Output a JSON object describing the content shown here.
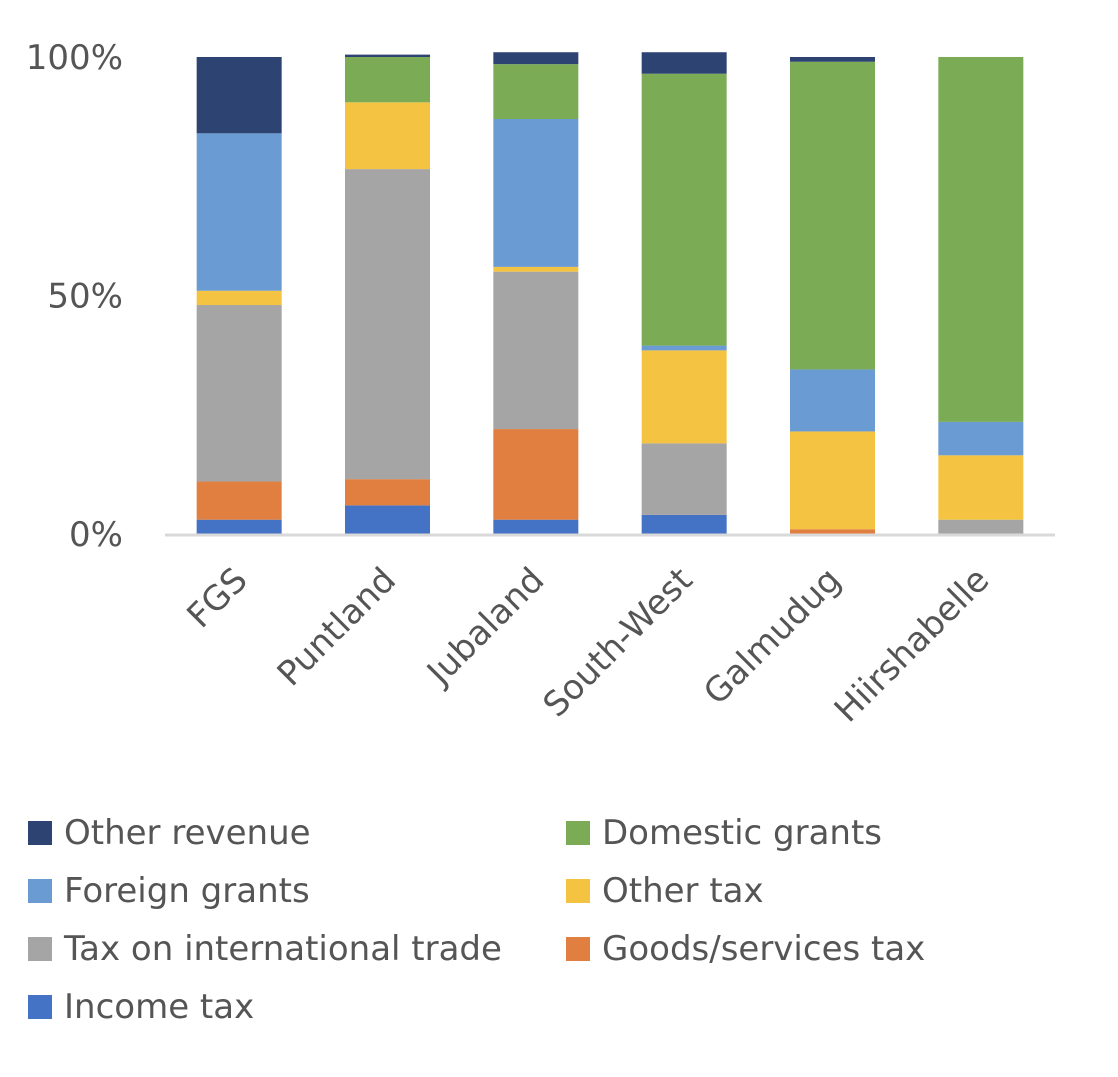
{
  "chart_data": {
    "type": "bar",
    "stacked": true,
    "categories": [
      "FGS",
      "Puntland",
      "Jubaland",
      "South-West",
      "Galmudug",
      "Hiirshabelle"
    ],
    "yticks": [
      "0%",
      "50%",
      "100%"
    ],
    "ylim": [
      0,
      100
    ],
    "grid": false,
    "legend_position": "bottom",
    "series": [
      {
        "name": "Income tax",
        "color": "#4472C4",
        "values": [
          3,
          6,
          3,
          4,
          0,
          0
        ]
      },
      {
        "name": "Goods/services tax",
        "color": "#E07F3F",
        "values": [
          8,
          5.5,
          19,
          0,
          1,
          0
        ]
      },
      {
        "name": "Tax on international trade",
        "color": "#A5A5A5",
        "values": [
          37,
          65,
          33,
          15,
          0,
          3
        ]
      },
      {
        "name": "Other tax",
        "color": "#F5C342",
        "values": [
          3,
          14,
          1,
          19.5,
          20.5,
          13.5
        ]
      },
      {
        "name": "Foreign grants",
        "color": "#6A9BD2",
        "values": [
          33,
          0,
          31,
          1,
          13,
          7
        ]
      },
      {
        "name": "Domestic grants",
        "color": "#7BAC55",
        "values": [
          0,
          9.5,
          11.5,
          57,
          64.5,
          76.5
        ]
      },
      {
        "name": "Other revenue",
        "color": "#2D4372",
        "values": [
          16,
          0.5,
          2.5,
          4.5,
          1,
          0
        ]
      }
    ]
  },
  "legend": {
    "items": [
      {
        "label": "Other revenue",
        "color": "#2D4372"
      },
      {
        "label": "Domestic grants",
        "color": "#7BAC55"
      },
      {
        "label": "Foreign grants",
        "color": "#6A9BD2"
      },
      {
        "label": "Other tax",
        "color": "#F5C342"
      },
      {
        "label": "Tax on international trade",
        "color": "#A5A5A5"
      },
      {
        "label": "Goods/services tax",
        "color": "#E07F3F"
      },
      {
        "label": "Income tax",
        "color": "#4472C4"
      }
    ]
  }
}
